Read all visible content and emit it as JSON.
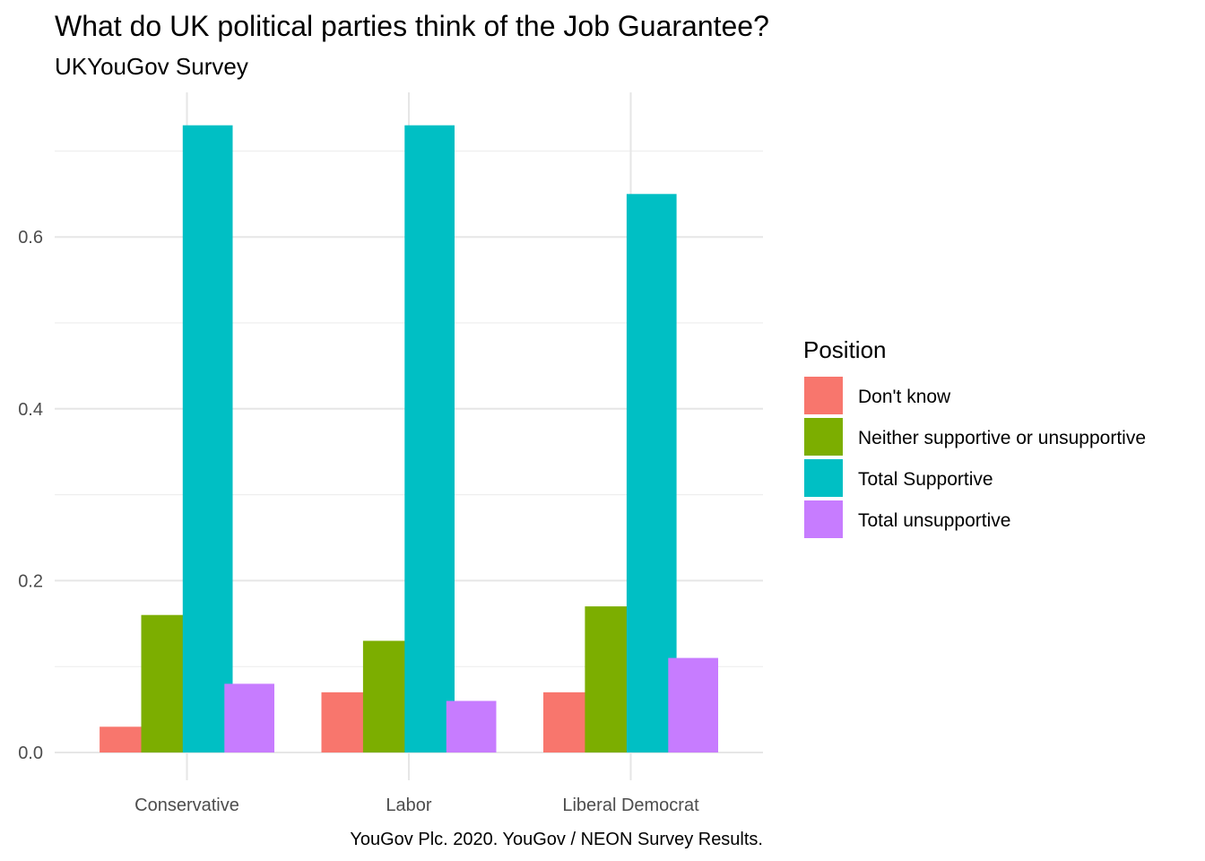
{
  "chart_data": {
    "type": "bar",
    "title": "What do UK political parties think of the Job Guarantee?",
    "subtitle": "UKYouGov Survey",
    "caption": "YouGov Plc. 2020. YouGov / NEON Survey Results.",
    "xlabel": "",
    "ylabel": "",
    "categories": [
      "Conservative",
      "Labor",
      "Liberal Democrat"
    ],
    "y_ticks": [
      0.0,
      0.2,
      0.4,
      0.6
    ],
    "y_tick_labels": [
      "0.0",
      "0.2",
      "0.4",
      "0.6"
    ],
    "ylim": [
      -0.035,
      0.77
    ],
    "grid": true,
    "legend_title": "Position",
    "legend_position": "right",
    "series": [
      {
        "name": "Don't know",
        "color": "#F8766D",
        "values": [
          0.03,
          0.07,
          0.07
        ]
      },
      {
        "name": "Neither supportive or unsupportive",
        "color": "#7CAE00",
        "values": [
          0.16,
          0.13,
          0.17
        ]
      },
      {
        "name": "Total Supportive",
        "color": "#00BFC4",
        "values": [
          0.73,
          0.73,
          0.65
        ]
      },
      {
        "name": "Total unsupportive",
        "color": "#C77CFF",
        "values": [
          0.08,
          0.06,
          0.11
        ]
      }
    ]
  }
}
